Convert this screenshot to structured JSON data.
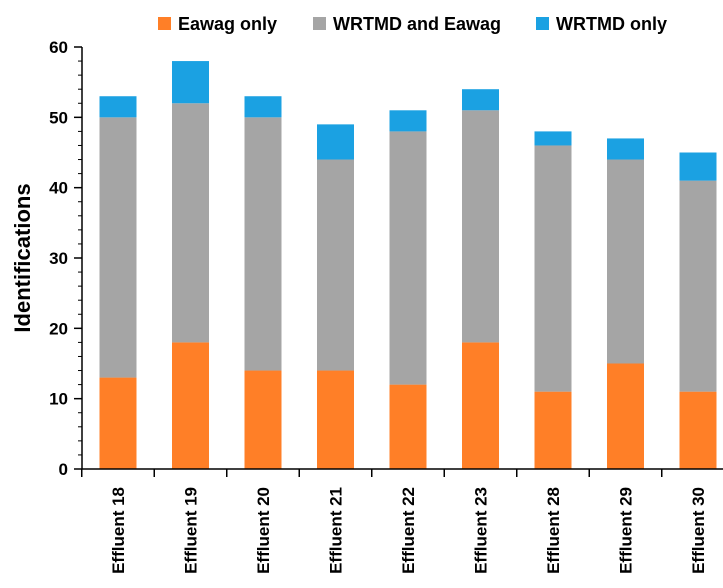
{
  "chart_data": {
    "type": "bar",
    "stacked": true,
    "categories": [
      "Effluent 18",
      "Effluent 19",
      "Effluent 20",
      "Effluent 21",
      "Effluent 22",
      "Effluent 23",
      "Effluent 28",
      "Effluent 29",
      "Effluent 30"
    ],
    "series": [
      {
        "name": "Eawag only",
        "color": "#ff7f27",
        "values": [
          13,
          18,
          14,
          14,
          12,
          18,
          11,
          15,
          11
        ]
      },
      {
        "name": "WRTMD and Eawag",
        "color": "#a5a5a5",
        "values": [
          37,
          34,
          36,
          30,
          36,
          33,
          35,
          29,
          30
        ]
      },
      {
        "name": "WRTMD only",
        "color": "#1ba1e2",
        "values": [
          3,
          6,
          3,
          5,
          3,
          3,
          2,
          3,
          4
        ]
      }
    ],
    "title": "",
    "xlabel": "",
    "ylabel": "Identifications",
    "ylim": [
      0,
      60
    ],
    "yticks": [
      "0",
      "10",
      "20",
      "30",
      "40",
      "50",
      "60"
    ],
    "grid": false,
    "legend_position": "top"
  }
}
